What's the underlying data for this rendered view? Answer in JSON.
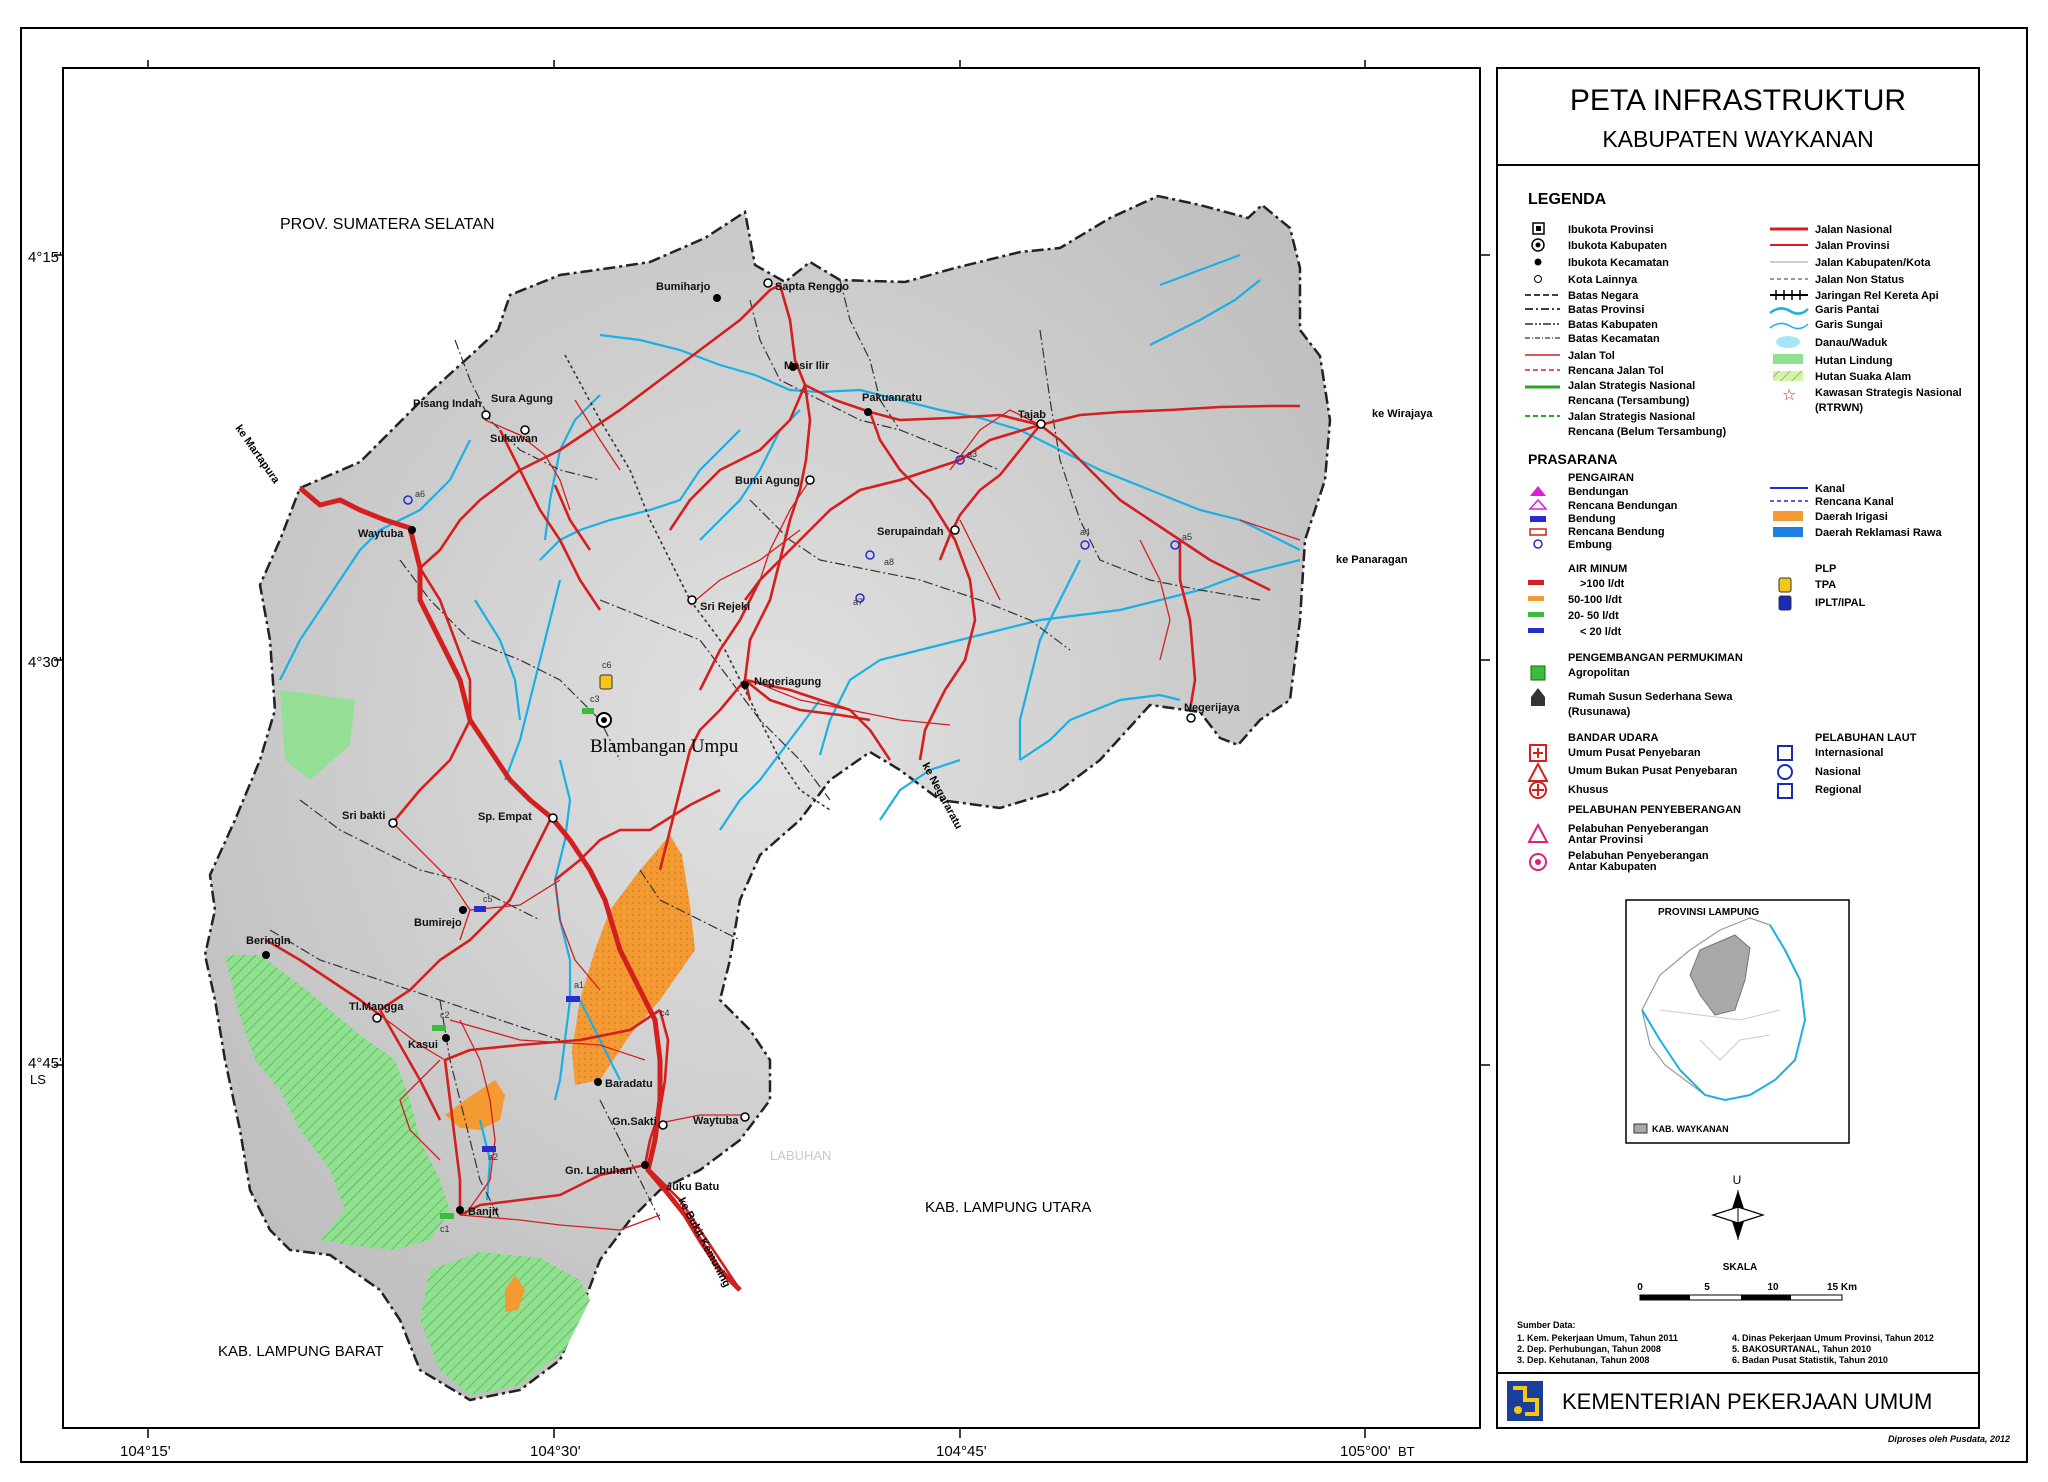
{
  "title": "PETA INFRASTRUKTUR",
  "subtitle": "KABUPATEN WAYKANAN",
  "map": {
    "lat_labels": [
      "4°15'",
      "4°30'",
      "4°45'"
    ],
    "lat_unit": "LS",
    "lon_labels": [
      "104°15'",
      "104°30'",
      "104°45'",
      "105°00'"
    ],
    "lon_unit": "BT",
    "regions": {
      "north": "PROV. SUMATERA SELATAN",
      "east": "KAB. LAMPUNG UTARA",
      "southwest": "KAB. LAMPUNG BARAT",
      "labuhan": "LABUHAN"
    },
    "capital": "Blambangan Umpu",
    "towns": [
      "Bumiharjo",
      "Sapta Renggo",
      "Mesir Ilir",
      "Pakuanratu",
      "Tajab",
      "Sura Agung",
      "Pisang Indah",
      "Sukawan",
      "Bumi Agung",
      "Waytuba",
      "Serupaindah",
      "Sri Rejeki",
      "Negeriagung",
      "Negerijaya",
      "Sri bakti",
      "Sp. Empat",
      "Bumirejo",
      "Beringin",
      "Tl.Mangga",
      "Kasui",
      "Baradatu",
      "Gn.Sakti",
      "Waytuba",
      "Gn. Labuhan",
      "Juku Batu",
      "Banjit"
    ],
    "road_exits": [
      "ke Martapura",
      "ke Wirajaya",
      "ke Panaragan",
      "ke Negararatu",
      "ke Bukit Kemuning"
    ],
    "feature_codes": [
      "a6",
      "a3",
      "a4",
      "a5",
      "a8",
      "a7",
      "c6",
      "c3",
      "c5",
      "c2",
      "c1",
      "a1",
      "a2",
      "c4"
    ]
  },
  "legend": {
    "title": "LEGENDA",
    "left": [
      "Ibukota Provinsi",
      "Ibukota Kabupaten",
      "Ibukota Kecamatan",
      "Kota Lainnya",
      "Batas Negara",
      "Batas Provinsi",
      "Batas Kabupaten",
      "Batas Kecamatan",
      "Jalan Tol",
      "Rencana Jalan Tol",
      "Jalan Strategis Nasional",
      "Rencana (Tersambung)",
      "Jalan Strategis Nasional",
      "Rencana (Belum Tersambung)"
    ],
    "right": [
      "Jalan Nasional",
      "Jalan Provinsi",
      "Jalan Kabupaten/Kota",
      "Jalan Non Status",
      "Jaringan Rel Kereta Api",
      "Garis Pantai",
      "Garis Sungai",
      "Danau/Waduk",
      "Hutan Lindung",
      "Hutan Suaka Alam",
      "Kawasan Strategis Nasional",
      "(RTRWN)"
    ],
    "prasarana_title": "PRASARANA",
    "pengairan_title": "PENGAIRAN",
    "pengairan": [
      "Bendungan",
      "Rencana Bendungan",
      "Bendung",
      "Rencana Bendung",
      "Embung"
    ],
    "pengairan_right": [
      "Kanal",
      "Rencana Kanal",
      "Daerah Irigasi",
      "Daerah Reklamasi Rawa"
    ],
    "air_minum_title": "AIR MINUM",
    "air_minum": [
      ">100 l/dt",
      "50-100 l/dt",
      "20- 50 l/dt",
      "< 20 l/dt"
    ],
    "plp_title": "PLP",
    "plp": [
      "TPA",
      "IPLT/IPAL"
    ],
    "permukiman_title": "PENGEMBANGAN PERMUKIMAN",
    "permukiman": [
      "Agropolitan",
      "Rumah Susun Sederhana Sewa",
      "(Rusunawa)"
    ],
    "bandara_title": "BANDAR UDARA",
    "bandara": [
      "Umum Pusat Penyebaran",
      "Umum Bukan Pusat Penyebaran",
      "Khusus"
    ],
    "laut_title": "PELABUHAN LAUT",
    "laut": [
      "Internasional",
      "Nasional",
      "Regional"
    ],
    "penyeberangan_title": "PELABUHAN PENYEBERANGAN",
    "penyeberangan": [
      "Pelabuhan Penyeberangan",
      "Antar Provinsi",
      "Pelabuhan Penyeberangan",
      "Antar Kabupaten"
    ]
  },
  "inset": {
    "title": "PROVINSI LAMPUNG",
    "legend": "KAB. WAYKANAN"
  },
  "north_label": "U",
  "scale": {
    "label": "SKALA",
    "ticks": [
      "0",
      "5",
      "10",
      "15 Km"
    ]
  },
  "sources": {
    "title": "Sumber Data:",
    "items": [
      "1. Kem. Pekerjaan Umum, Tahun 2011",
      "2. Dep. Perhubungan, Tahun 2008",
      "3. Dep. Kehutanan, Tahun 2008",
      "4. Dinas Pekerjaan Umum Provinsi, Tahun 2012",
      "5. BAKOSURTANAL, Tahun 2010",
      "6. Badan Pusat Statistik, Tahun 2010"
    ]
  },
  "ministry": "KEMENTERIAN PEKERJAAN UMUM",
  "credit": "Diproses oleh Pusdata, 2012",
  "colors": {
    "national_road": "#d41f1f",
    "river": "#1ab0e6",
    "protected_forest": "#8fe08f",
    "irrigation": "#f39a33",
    "relief": "#d2d2d2",
    "inset_highlight": "#a8a8a8"
  }
}
